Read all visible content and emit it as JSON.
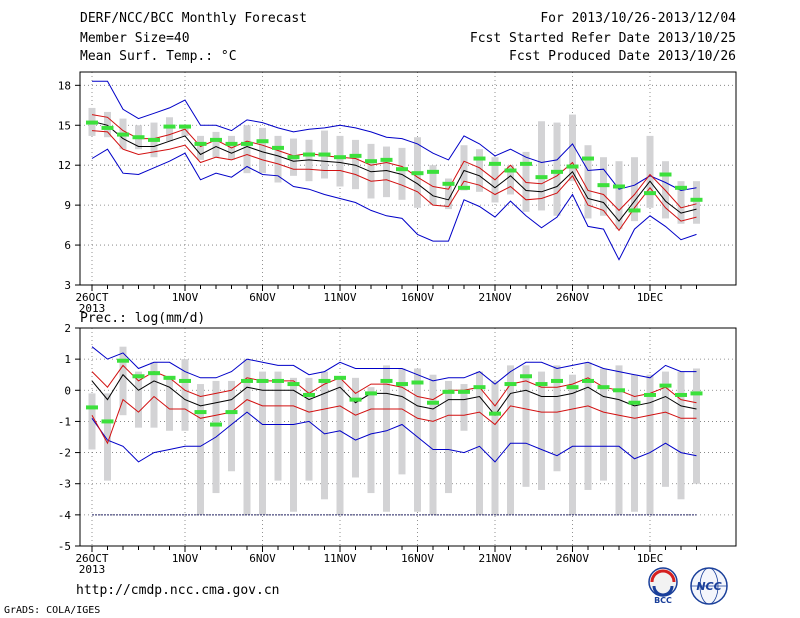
{
  "header": {
    "title": "DERF/NCC/BCC Monthly Forecast",
    "member_size": "Member Size=40",
    "variable": "Mean Surf. Temp.: °C",
    "period": "For 2013/10/26-2013/12/04",
    "start_date": "Fcst Started Refer Date 2013/10/25",
    "produced_date": "Fcst Produced Date 2013/10/26"
  },
  "precip_title": "Prec.: log(mm/d)",
  "url": "http://cmdp.ncc.cma.gov.cn",
  "credit": "GrADS: COLA/IGES",
  "logos": {
    "left": "BCC",
    "right": "NCC"
  },
  "colors": {
    "box": "#d3d3d5",
    "ensemble_mean": "#000000",
    "inner_band": "#d21010",
    "outer_band": "#0000c8",
    "climatology": "#3ce03c"
  },
  "chart_data": [
    {
      "type": "line",
      "panel": "temperature",
      "ylabel": "Mean Surf. Temp.: °C",
      "ylim": [
        3,
        19
      ],
      "yticks": [
        3,
        6,
        9,
        12,
        15,
        18
      ],
      "x": [
        "26OCT",
        "27OCT",
        "28OCT",
        "29OCT",
        "30OCT",
        "31OCT",
        "1NOV",
        "2NOV",
        "3NOV",
        "4NOV",
        "5NOV",
        "6NOV",
        "7NOV",
        "8NOV",
        "9NOV",
        "10NOV",
        "11NOV",
        "12NOV",
        "13NOV",
        "14NOV",
        "15NOV",
        "16NOV",
        "17NOV",
        "18NOV",
        "19NOV",
        "20NOV",
        "21NOV",
        "22NOV",
        "23NOV",
        "24NOV",
        "25NOV",
        "26NOV",
        "27NOV",
        "28NOV",
        "29NOV",
        "30NOV",
        "1DEC",
        "2DEC",
        "3DEC",
        "4DEC"
      ],
      "xticks": [
        {
          "label": "26OCT",
          "sub": "2013",
          "index": 0
        },
        {
          "label": "1NOV",
          "index": 6
        },
        {
          "label": "6NOV",
          "index": 11
        },
        {
          "label": "11NOV",
          "index": 16
        },
        {
          "label": "16NOV",
          "index": 21
        },
        {
          "label": "21NOV",
          "index": 26
        },
        {
          "label": "26NOV",
          "index": 31
        },
        {
          "label": "1DEC",
          "index": 36
        }
      ],
      "grid": true,
      "series": [
        {
          "role": "outer_upper",
          "values": [
            18.3,
            18.3,
            16.2,
            15.5,
            15.9,
            16.3,
            16.9,
            15.0,
            15.0,
            14.6,
            15.4,
            15.2,
            14.8,
            14.5,
            14.7,
            14.8,
            15.0,
            14.8,
            14.5,
            14.1,
            14.0,
            13.6,
            12.9,
            12.4,
            14.2,
            13.6,
            12.7,
            13.2,
            12.6,
            12.2,
            12.4,
            13.6,
            11.6,
            11.7,
            10.2,
            10.5,
            11.2,
            10.7,
            10.1,
            10.3
          ]
        },
        {
          "role": "inner_upper",
          "values": [
            15.8,
            15.6,
            14.6,
            14.0,
            14.0,
            14.3,
            14.7,
            13.4,
            13.9,
            13.3,
            13.8,
            13.5,
            13.1,
            12.7,
            12.9,
            12.7,
            12.6,
            12.5,
            12.0,
            12.2,
            11.9,
            11.1,
            10.4,
            10.2,
            12.3,
            11.8,
            10.9,
            12.0,
            10.7,
            10.6,
            11.2,
            12.2,
            10.1,
            9.8,
            8.6,
            9.8,
            11.3,
            10.1,
            8.8,
            9.1
          ]
        },
        {
          "role": "mean",
          "values": [
            15.3,
            15.0,
            14.0,
            13.4,
            13.4,
            13.8,
            14.2,
            12.8,
            13.4,
            12.9,
            13.4,
            13.0,
            12.7,
            12.3,
            12.4,
            12.3,
            12.2,
            12.0,
            11.5,
            11.6,
            11.3,
            10.6,
            9.7,
            9.4,
            11.6,
            11.2,
            10.3,
            11.2,
            10.1,
            10.0,
            10.4,
            11.5,
            9.5,
            9.2,
            7.8,
            9.3,
            10.8,
            9.3,
            8.4,
            8.7
          ]
        },
        {
          "role": "inner_lower",
          "values": [
            14.6,
            14.5,
            13.2,
            12.8,
            13.0,
            13.2,
            13.5,
            12.2,
            12.6,
            12.4,
            12.8,
            12.4,
            12.1,
            11.7,
            11.7,
            11.6,
            11.6,
            11.3,
            10.8,
            10.9,
            10.5,
            10.0,
            9.0,
            8.9,
            10.8,
            10.5,
            9.8,
            10.4,
            9.4,
            9.5,
            9.9,
            11.2,
            9.0,
            8.6,
            7.1,
            8.8,
            10.3,
            8.8,
            7.8,
            8.1
          ]
        },
        {
          "role": "outer_lower",
          "values": [
            12.5,
            13.2,
            11.4,
            11.3,
            11.8,
            12.3,
            12.9,
            10.9,
            11.4,
            11.1,
            11.9,
            11.3,
            11.2,
            10.4,
            10.2,
            9.8,
            9.5,
            9.2,
            8.6,
            8.2,
            8.0,
            6.8,
            6.3,
            6.3,
            9.4,
            8.9,
            8.1,
            9.3,
            8.2,
            7.3,
            8.1,
            9.8,
            7.4,
            7.2,
            4.9,
            7.2,
            8.2,
            7.4,
            6.4,
            6.8
          ]
        },
        {
          "role": "climatology",
          "values": [
            15.2,
            14.8,
            14.3,
            14.1,
            13.9,
            14.9,
            14.9,
            13.6,
            13.9,
            13.6,
            13.6,
            13.8,
            13.3,
            12.6,
            12.8,
            12.8,
            12.6,
            12.7,
            12.3,
            12.4,
            11.7,
            11.4,
            11.5,
            10.6,
            10.3,
            12.5,
            12.1,
            11.6,
            12.1,
            11.1,
            11.5,
            11.9,
            12.5,
            10.5,
            10.4,
            8.6,
            9.9,
            11.3,
            10.3,
            9.4
          ]
        },
        {
          "role": "box_top",
          "values": [
            16.3,
            16.0,
            15.5,
            15.0,
            15.2,
            15.6,
            15.0,
            14.2,
            14.5,
            14.2,
            15.0,
            14.8,
            14.2,
            14.0,
            13.9,
            14.6,
            14.2,
            13.9,
            13.6,
            13.4,
            13.3,
            14.1,
            12.0,
            11.0,
            13.5,
            13.2,
            12.6,
            12.0,
            13.0,
            15.3,
            15.2,
            15.8,
            13.5,
            12.6,
            12.3,
            12.6,
            14.2,
            12.3,
            10.8,
            10.8
          ]
        },
        {
          "role": "box_bottom",
          "values": [
            14.2,
            14.1,
            13.2,
            13.2,
            12.6,
            13.8,
            14.2,
            12.4,
            12.6,
            12.4,
            11.4,
            11.4,
            10.7,
            11.2,
            10.8,
            11.0,
            10.4,
            10.2,
            9.5,
            9.6,
            9.4,
            8.8,
            9.0,
            8.7,
            10.1,
            10.0,
            9.2,
            9.8,
            8.5,
            8.6,
            8.2,
            10.8,
            8.0,
            8.2,
            7.2,
            7.8,
            8.8,
            8.0,
            7.6,
            7.6
          ]
        }
      ]
    },
    {
      "type": "line",
      "panel": "precipitation",
      "ylabel": "Prec.: log(mm/d)",
      "ylim": [
        -5,
        2
      ],
      "yticks": [
        -5,
        -4,
        -3,
        -2,
        -1,
        0,
        1,
        2
      ],
      "x": [
        "26OCT",
        "27OCT",
        "28OCT",
        "29OCT",
        "30OCT",
        "31OCT",
        "1NOV",
        "2NOV",
        "3NOV",
        "4NOV",
        "5NOV",
        "6NOV",
        "7NOV",
        "8NOV",
        "9NOV",
        "10NOV",
        "11NOV",
        "12NOV",
        "13NOV",
        "14NOV",
        "15NOV",
        "16NOV",
        "17NOV",
        "18NOV",
        "19NOV",
        "20NOV",
        "21NOV",
        "22NOV",
        "23NOV",
        "24NOV",
        "25NOV",
        "26NOV",
        "27NOV",
        "28NOV",
        "29NOV",
        "30NOV",
        "1DEC",
        "2DEC",
        "3DEC",
        "4DEC"
      ],
      "xticks": [
        {
          "label": "26OCT",
          "sub": "2013",
          "index": 0
        },
        {
          "label": "1NOV",
          "index": 6
        },
        {
          "label": "6NOV",
          "index": 11
        },
        {
          "label": "11NOV",
          "index": 16
        },
        {
          "label": "16NOV",
          "index": 21
        },
        {
          "label": "21NOV",
          "index": 26
        },
        {
          "label": "26NOV",
          "index": 31
        },
        {
          "label": "1DEC",
          "index": 36
        }
      ],
      "grid": true,
      "series": [
        {
          "role": "outer_upper",
          "values": [
            1.4,
            1.0,
            1.2,
            0.7,
            0.9,
            0.9,
            0.6,
            0.4,
            0.4,
            0.6,
            1.0,
            0.9,
            0.8,
            0.8,
            0.5,
            0.6,
            0.9,
            0.7,
            0.7,
            0.7,
            0.7,
            0.5,
            0.3,
            0.4,
            0.4,
            0.6,
            0.2,
            0.6,
            0.9,
            0.9,
            0.7,
            0.8,
            0.9,
            0.7,
            0.6,
            0.5,
            0.4,
            0.8,
            0.6,
            0.6
          ]
        },
        {
          "role": "inner_upper",
          "values": [
            0.6,
            0.1,
            0.8,
            0.3,
            0.6,
            0.4,
            0.0,
            -0.2,
            -0.1,
            0.0,
            0.4,
            0.3,
            0.3,
            0.3,
            -0.1,
            0.2,
            0.4,
            -0.1,
            0.2,
            0.2,
            0.1,
            -0.2,
            -0.3,
            0.0,
            0.0,
            0.1,
            -0.5,
            0.2,
            0.3,
            0.1,
            0.1,
            0.2,
            0.4,
            0.1,
            0.0,
            -0.2,
            -0.1,
            0.1,
            -0.3,
            -0.4
          ]
        },
        {
          "role": "mean",
          "values": [
            0.3,
            -0.3,
            0.5,
            0.0,
            0.3,
            0.1,
            -0.3,
            -0.5,
            -0.4,
            -0.3,
            0.1,
            0.0,
            0.0,
            0.0,
            -0.3,
            -0.1,
            0.1,
            -0.4,
            -0.1,
            -0.1,
            -0.2,
            -0.5,
            -0.6,
            -0.3,
            -0.3,
            -0.2,
            -0.8,
            -0.1,
            0.0,
            -0.2,
            -0.2,
            -0.1,
            0.1,
            -0.2,
            -0.3,
            -0.5,
            -0.4,
            -0.2,
            -0.5,
            -0.6
          ]
        },
        {
          "role": "inner_lower",
          "values": [
            -0.8,
            -1.7,
            -0.3,
            -0.7,
            -0.2,
            -0.6,
            -0.6,
            -0.9,
            -0.8,
            -0.7,
            -0.3,
            -0.5,
            -0.5,
            -0.5,
            -0.7,
            -0.6,
            -0.5,
            -0.8,
            -0.6,
            -0.6,
            -0.6,
            -0.9,
            -1.0,
            -0.8,
            -0.8,
            -0.7,
            -1.1,
            -0.5,
            -0.6,
            -0.7,
            -0.7,
            -0.6,
            -0.5,
            -0.7,
            -0.8,
            -0.9,
            -0.8,
            -0.7,
            -0.9,
            -0.9
          ]
        },
        {
          "role": "outer_lower",
          "values": [
            -0.9,
            -1.6,
            -1.8,
            -2.3,
            -2.0,
            -1.9,
            -1.8,
            -1.8,
            -1.5,
            -1.1,
            -0.7,
            -1.1,
            -1.1,
            -1.1,
            -1.0,
            -1.4,
            -1.3,
            -1.6,
            -1.4,
            -1.3,
            -1.1,
            -1.5,
            -1.9,
            -1.9,
            -2.0,
            -1.8,
            -2.3,
            -1.7,
            -1.7,
            -1.9,
            -2.1,
            -1.8,
            -1.8,
            -1.8,
            -1.8,
            -2.2,
            -2.0,
            -1.7,
            -2.0,
            -2.1
          ]
        },
        {
          "role": "climatology",
          "values": [
            -0.55,
            -1.0,
            0.95,
            0.45,
            0.55,
            0.4,
            0.3,
            -0.7,
            -1.1,
            -0.7,
            0.3,
            0.3,
            0.3,
            0.2,
            -0.15,
            0.3,
            0.4,
            -0.3,
            -0.1,
            0.3,
            0.2,
            0.25,
            -0.4,
            -0.05,
            -0.05,
            0.1,
            -0.75,
            0.2,
            0.45,
            0.2,
            0.3,
            0.1,
            0.3,
            0.1,
            0.0,
            -0.4,
            -0.15,
            0.15,
            -0.15,
            -0.1
          ]
        },
        {
          "role": "box_top",
          "values": [
            -0.1,
            -0.1,
            1.4,
            0.6,
            0.9,
            0.4,
            1.0,
            0.2,
            0.3,
            0.3,
            1.0,
            0.6,
            0.6,
            0.4,
            0.4,
            0.6,
            0.4,
            0.4,
            0.1,
            0.8,
            0.7,
            0.7,
            0.5,
            0.3,
            0.2,
            0.6,
            0.3,
            0.8,
            0.8,
            0.6,
            0.8,
            0.5,
            0.9,
            0.7,
            0.8,
            0.5,
            0.5,
            0.6,
            0.6,
            0.7
          ]
        },
        {
          "role": "box_bottom",
          "values": [
            -1.9,
            -2.9,
            -0.8,
            -1.2,
            -1.2,
            -1.3,
            -1.3,
            -4.0,
            -3.3,
            -2.6,
            -4.0,
            -4.0,
            -2.9,
            -3.9,
            -2.9,
            -3.5,
            -4.0,
            -2.8,
            -3.3,
            -3.9,
            -2.7,
            -3.9,
            -4.0,
            -3.3,
            -1.3,
            -4.0,
            -4.0,
            -4.0,
            -3.1,
            -3.2,
            -2.6,
            -4.0,
            -3.2,
            -2.9,
            -4.0,
            -3.9,
            -4.0,
            -3.1,
            -3.5,
            -3.0
          ]
        },
        {
          "role": "floor",
          "values": [
            -4,
            -4,
            -4,
            -4,
            -4,
            -4,
            -4,
            -4,
            -4,
            -4,
            -4,
            -4,
            -4,
            -4,
            -4,
            -4,
            -4,
            -4,
            -4,
            -4,
            -4,
            -4,
            -4,
            -4,
            -4,
            -4,
            -4,
            -4,
            -4,
            -4,
            -4,
            -4,
            -4,
            -4,
            -4,
            -4,
            -4,
            -4,
            -4,
            -4
          ]
        }
      ]
    }
  ]
}
